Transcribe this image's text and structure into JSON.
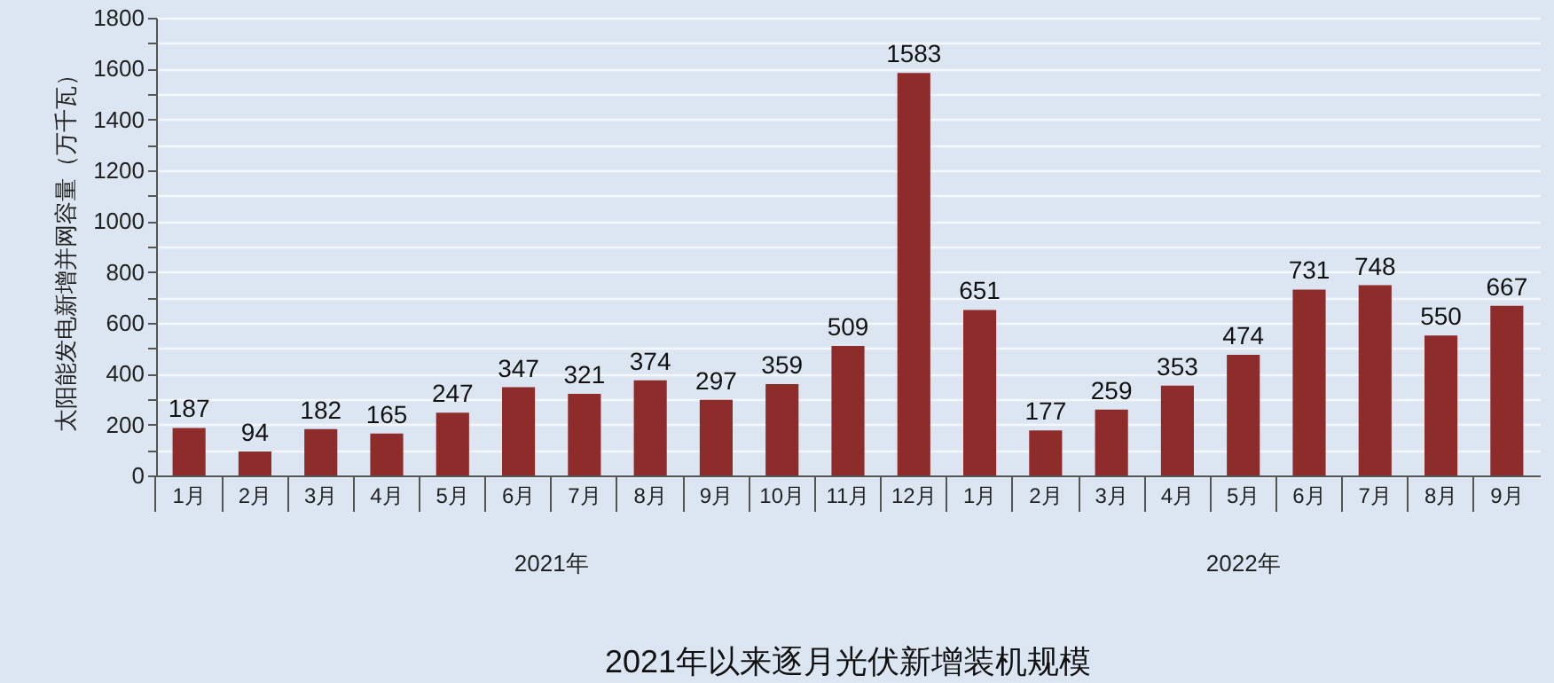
{
  "chart_data": {
    "type": "bar",
    "title": "2021年以来逐月光伏新增装机规模",
    "ylabel": "太阳能发电新增并网容量（万千瓦）",
    "categories": [
      "1月",
      "2月",
      "3月",
      "4月",
      "5月",
      "6月",
      "7月",
      "8月",
      "9月",
      "10月",
      "11月",
      "12月",
      "1月",
      "2月",
      "3月",
      "4月",
      "5月",
      "6月",
      "7月",
      "8月",
      "9月"
    ],
    "values": [
      187,
      94,
      182,
      165,
      247,
      347,
      321,
      374,
      297,
      359,
      509,
      1583,
      651,
      177,
      259,
      353,
      474,
      731,
      748,
      550,
      667
    ],
    "color": "#8e2b2b",
    "data_labels": true,
    "ylim": [
      0,
      1800
    ],
    "yticks": [
      0,
      {
        "value": 100,
        "label": null
      },
      200,
      {
        "value": 300,
        "label": null
      },
      400,
      {
        "value": 500,
        "label": null
      },
      600,
      {
        "value": 700,
        "label": null
      },
      800,
      {
        "value": 900,
        "label": null
      },
      1000,
      {
        "value": 1100,
        "label": null
      },
      1200,
      {
        "value": 1300,
        "label": null
      },
      1400,
      {
        "value": 1500,
        "label": null
      },
      1600,
      {
        "value": 1700,
        "label": null
      },
      1800
    ],
    "grid": "y",
    "annotations": [
      "2021年",
      "2022年"
    ]
  }
}
